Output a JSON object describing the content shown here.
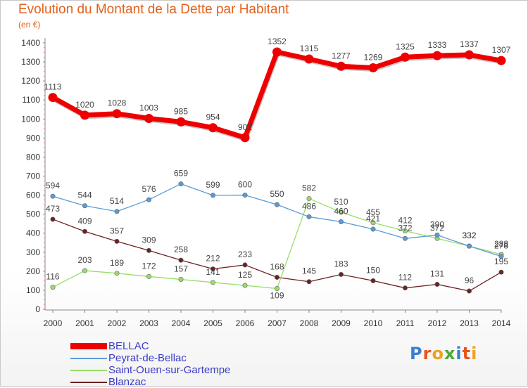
{
  "header": {
    "title": "Evolution du Montant de la Dette par Habitant",
    "unit": "(en €)"
  },
  "logo": {
    "text": "Proxiti"
  },
  "chart_data": {
    "type": "line",
    "title": "Evolution du Montant de la Dette par Habitant",
    "ylabel": "(en €)",
    "xlabel": "",
    "ylim": [
      0,
      1400
    ],
    "yticks": [
      0,
      100,
      200,
      300,
      400,
      500,
      600,
      700,
      800,
      900,
      1000,
      1100,
      1200,
      1300,
      1400
    ],
    "x": [
      "2000",
      "2001",
      "2002",
      "2003",
      "2004",
      "2005",
      "2006",
      "2007",
      "2008",
      "2009",
      "2010",
      "2011",
      "2012",
      "2013",
      "2014"
    ],
    "grid": false,
    "legend_position": "bottom-left",
    "series": [
      {
        "name": "BELLAC",
        "color": "#ee0000",
        "values": [
          1113,
          1020,
          1028,
          1003,
          985,
          954,
          902,
          1352,
          1315,
          1277,
          1269,
          1325,
          1333,
          1337,
          1307
        ]
      },
      {
        "name": "Peyrat-de-Bellac",
        "color": "#5b9bd5",
        "values": [
          594,
          544,
          514,
          576,
          659,
          599,
          600,
          550,
          486,
          460,
          421,
          372,
          390,
          332,
          278
        ]
      },
      {
        "name": "Saint-Ouen-sur-Gartempe",
        "color": "#99dd66",
        "values": [
          116,
          203,
          189,
          172,
          157,
          141,
          125,
          109,
          582,
          510,
          455,
          412,
          372,
          332,
          288
        ]
      },
      {
        "name": "Blanzac",
        "color": "#6b2222",
        "values": [
          473,
          409,
          357,
          309,
          258,
          212,
          233,
          168,
          145,
          183,
          150,
          112,
          131,
          96,
          195
        ]
      }
    ]
  }
}
